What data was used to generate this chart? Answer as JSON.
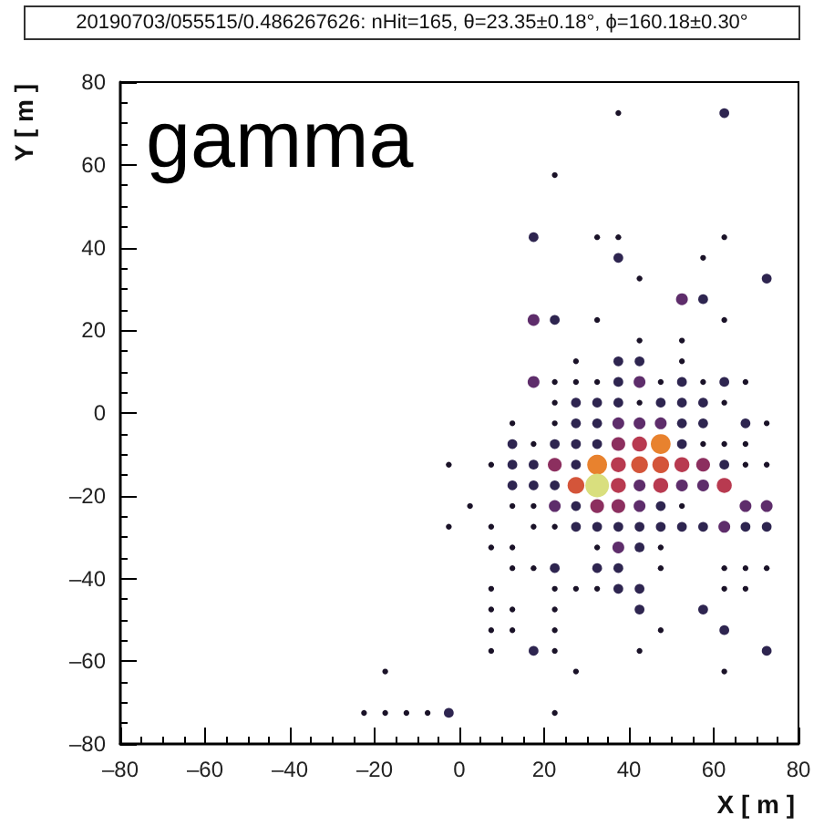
{
  "chart_data": {
    "type": "bubble",
    "title": "20190703/055515/0.486267626: nHit=165, θ=23.35±0.18°, ϕ=160.18±0.30°",
    "xlabel": "X [ m ]",
    "ylabel": "Y [ m ]",
    "annotations": [
      "gamma"
    ],
    "xlim": [
      -80,
      80
    ],
    "xticks": [
      {
        "value": -80,
        "label": "–80"
      },
      {
        "value": -60,
        "label": "–60"
      },
      {
        "value": -40,
        "label": "–40"
      },
      {
        "value": -20,
        "label": "–20"
      },
      0,
      20,
      40,
      60,
      80
    ],
    "ylim": [
      -80,
      80
    ],
    "yticks": [
      {
        "value": -80,
        "label": "–80"
      },
      {
        "value": -60,
        "label": "–60"
      },
      {
        "value": -40,
        "label": "–40"
      },
      {
        "value": -20,
        "label": "–20"
      },
      0,
      20,
      40,
      60,
      80
    ],
    "marker": "circle",
    "x": [
      37.5,
      62.5,
      22.5,
      17.5,
      32.5,
      37.5,
      62.5,
      37.5,
      57.5,
      42.5,
      72.5,
      52.5,
      57.5,
      17.5,
      22.5,
      32.5,
      62.5,
      42.5,
      52.5,
      27.5,
      37.5,
      42.5,
      52.5,
      17.5,
      22.5,
      27.5,
      32.5,
      37.5,
      42.5,
      47.5,
      52.5,
      57.5,
      62.5,
      67.5,
      22.5,
      27.5,
      32.5,
      37.5,
      42.5,
      47.5,
      52.5,
      57.5,
      62.5,
      12.5,
      22.5,
      27.5,
      32.5,
      37.5,
      42.5,
      47.5,
      52.5,
      57.5,
      67.5,
      72.5,
      12.5,
      17.5,
      22.5,
      27.5,
      32.5,
      37.5,
      42.5,
      47.5,
      52.5,
      57.5,
      62.5,
      67.5,
      -2.5,
      7.5,
      12.5,
      17.5,
      22.5,
      27.5,
      32.5,
      37.5,
      42.5,
      47.5,
      52.5,
      57.5,
      62.5,
      67.5,
      72.5,
      12.5,
      17.5,
      22.5,
      27.5,
      32.5,
      37.5,
      42.5,
      47.5,
      52.5,
      57.5,
      62.5,
      2.5,
      12.5,
      17.5,
      22.5,
      27.5,
      32.5,
      37.5,
      42.5,
      47.5,
      52.5,
      67.5,
      72.5,
      -2.5,
      7.5,
      17.5,
      22.5,
      27.5,
      32.5,
      37.5,
      42.5,
      47.5,
      52.5,
      57.5,
      62.5,
      67.5,
      72.5,
      7.5,
      12.5,
      32.5,
      37.5,
      42.5,
      47.5,
      12.5,
      17.5,
      22.5,
      32.5,
      37.5,
      47.5,
      62.5,
      67.5,
      72.5,
      7.5,
      22.5,
      27.5,
      32.5,
      37.5,
      42.5,
      62.5,
      67.5,
      7.5,
      12.5,
      22.5,
      42.5,
      57.5,
      7.5,
      12.5,
      22.5,
      47.5,
      62.5,
      7.5,
      17.5,
      22.5,
      42.5,
      72.5,
      -17.5,
      27.5,
      62.5,
      -22.5,
      -17.5,
      -12.5,
      -7.5,
      -2.5,
      22.5
    ],
    "values": [
      72.5,
      72.5,
      57.5,
      42.5,
      42.5,
      42.5,
      42.5,
      37.5,
      37.5,
      32.5,
      32.5,
      27.5,
      27.5,
      22.5,
      22.5,
      22.5,
      22.5,
      17.5,
      17.5,
      12.5,
      12.5,
      12.5,
      12.5,
      7.5,
      7.5,
      7.5,
      7.5,
      7.5,
      7.5,
      7.5,
      7.5,
      7.5,
      7.5,
      7.5,
      2.5,
      2.5,
      2.5,
      2.5,
      2.5,
      2.5,
      2.5,
      2.5,
      2.5,
      -2.5,
      -2.5,
      -2.5,
      -2.5,
      -2.5,
      -2.5,
      -2.5,
      -2.5,
      -2.5,
      -2.5,
      -2.5,
      -7.5,
      -7.5,
      -7.5,
      -7.5,
      -7.5,
      -7.5,
      -7.5,
      -7.5,
      -7.5,
      -7.5,
      -7.5,
      -7.5,
      -12.5,
      -12.5,
      -12.5,
      -12.5,
      -12.5,
      -12.5,
      -12.5,
      -12.5,
      -12.5,
      -12.5,
      -12.5,
      -12.5,
      -12.5,
      -12.5,
      -12.5,
      -17.5,
      -17.5,
      -17.5,
      -17.5,
      -17.5,
      -17.5,
      -17.5,
      -17.5,
      -17.5,
      -17.5,
      -17.5,
      -22.5,
      -22.5,
      -22.5,
      -22.5,
      -22.5,
      -22.5,
      -22.5,
      -22.5,
      -22.5,
      -22.5,
      -22.5,
      -22.5,
      -27.5,
      -27.5,
      -27.5,
      -27.5,
      -27.5,
      -27.5,
      -27.5,
      -27.5,
      -27.5,
      -27.5,
      -27.5,
      -27.5,
      -27.5,
      -27.5,
      -32.5,
      -32.5,
      -32.5,
      -32.5,
      -32.5,
      -32.5,
      -37.5,
      -37.5,
      -37.5,
      -37.5,
      -37.5,
      -37.5,
      -37.5,
      -37.5,
      -37.5,
      -42.5,
      -42.5,
      -42.5,
      -42.5,
      -42.5,
      -42.5,
      -42.5,
      -42.5,
      -47.5,
      -47.5,
      -47.5,
      -47.5,
      -47.5,
      -52.5,
      -52.5,
      -52.5,
      -52.5,
      -52.5,
      -57.5,
      -57.5,
      -57.5,
      -57.5,
      -57.5,
      -62.5,
      -62.5,
      -62.5,
      -72.5,
      -72.5,
      -72.5,
      -72.5,
      -72.5,
      -72.5
    ],
    "sizes": [
      0.06,
      0.17,
      0.06,
      0.17,
      0.06,
      0.06,
      0.06,
      0.17,
      0.06,
      0.06,
      0.17,
      0.25,
      0.17,
      0.25,
      0.17,
      0.06,
      0.06,
      0.06,
      0.06,
      0.06,
      0.17,
      0.17,
      0.06,
      0.25,
      0.06,
      0.06,
      0.06,
      0.17,
      0.25,
      0.06,
      0.17,
      0.06,
      0.17,
      0.06,
      0.06,
      0.17,
      0.17,
      0.17,
      0.06,
      0.17,
      0.17,
      0.17,
      0.06,
      0.06,
      0.06,
      0.17,
      0.17,
      0.25,
      0.25,
      0.25,
      0.17,
      0.17,
      0.17,
      0.06,
      0.17,
      0.06,
      0.17,
      0.17,
      0.17,
      0.34,
      0.4,
      0.7,
      0.17,
      0.06,
      0.06,
      0.06,
      0.06,
      0.06,
      0.17,
      0.17,
      0.34,
      0.17,
      0.7,
      0.4,
      0.5,
      0.5,
      0.4,
      0.34,
      0.17,
      0.06,
      0.06,
      0.17,
      0.17,
      0.17,
      0.5,
      1,
      0.4,
      0.25,
      0.4,
      0.25,
      0.25,
      0.4,
      0.06,
      0.06,
      0.06,
      0.25,
      0.17,
      0.34,
      0.34,
      0.25,
      0.17,
      0.06,
      0.25,
      0.25,
      0.06,
      0.06,
      0.06,
      0.06,
      0.17,
      0.17,
      0.17,
      0.17,
      0.17,
      0.17,
      0.17,
      0.25,
      0.17,
      0.17,
      0.06,
      0.06,
      0.06,
      0.25,
      0.17,
      0.06,
      0.06,
      0.06,
      0.17,
      0.17,
      0.17,
      0.06,
      0.06,
      0.06,
      0.06,
      0.06,
      0.06,
      0.06,
      0.06,
      0.17,
      0.17,
      0.06,
      0.06,
      0.06,
      0.06,
      0.06,
      0.17,
      0.17,
      0.06,
      0.06,
      0.06,
      0.06,
      0.17,
      0.06,
      0.17,
      0.06,
      0.06,
      0.17,
      0.06,
      0.06,
      0.06,
      0.06,
      0.06,
      0.06,
      0.06,
      0.17,
      0.06
    ],
    "colors": [
      "#1a1228",
      "#2e2550",
      "#1a1228",
      "#2e2550",
      "#1a1228",
      "#1a1228",
      "#1a1228",
      "#2e2550",
      "#1a1228",
      "#1a1228",
      "#2e2550",
      "#5e2d6b",
      "#2e2550",
      "#5e2d6b",
      "#2e2550",
      "#1a1228",
      "#1a1228",
      "#1a1228",
      "#1a1228",
      "#1a1228",
      "#2e2550",
      "#2e2550",
      "#1a1228",
      "#5e2d6b",
      "#1a1228",
      "#1a1228",
      "#1a1228",
      "#2e2550",
      "#5e2d6b",
      "#1a1228",
      "#2e2550",
      "#1a1228",
      "#2e2550",
      "#1a1228",
      "#1a1228",
      "#2e2550",
      "#2e2550",
      "#2e2550",
      "#1a1228",
      "#2e2550",
      "#2e2550",
      "#2e2550",
      "#1a1228",
      "#1a1228",
      "#1a1228",
      "#2e2550",
      "#2e2550",
      "#5e2d6b",
      "#5e2d6b",
      "#5e2d6b",
      "#2e2550",
      "#2e2550",
      "#2e2550",
      "#1a1228",
      "#2e2550",
      "#1a1228",
      "#2e2550",
      "#2e2550",
      "#2e2550",
      "#8c2f5f",
      "#b83a50",
      "#e8822e",
      "#2e2550",
      "#1a1228",
      "#1a1228",
      "#1a1228",
      "#1a1228",
      "#1a1228",
      "#2e2550",
      "#2e2550",
      "#8c2f5f",
      "#2e2550",
      "#e8822e",
      "#b83a50",
      "#d4553a",
      "#d4553a",
      "#b83a50",
      "#8c2f5f",
      "#2e2550",
      "#1a1228",
      "#1a1228",
      "#2e2550",
      "#2e2550",
      "#2e2550",
      "#d4553a",
      "#d9df7e",
      "#b83a50",
      "#5e2d6b",
      "#b83a50",
      "#5e2d6b",
      "#5e2d6b",
      "#b83a50",
      "#1a1228",
      "#1a1228",
      "#1a1228",
      "#5e2d6b",
      "#2e2550",
      "#8c2f5f",
      "#8c2f5f",
      "#5e2d6b",
      "#2e2550",
      "#1a1228",
      "#5e2d6b",
      "#5e2d6b",
      "#1a1228",
      "#1a1228",
      "#1a1228",
      "#1a1228",
      "#2e2550",
      "#2e2550",
      "#2e2550",
      "#2e2550",
      "#2e2550",
      "#2e2550",
      "#2e2550",
      "#5e2d6b",
      "#2e2550",
      "#2e2550",
      "#1a1228",
      "#1a1228",
      "#1a1228",
      "#5e2d6b",
      "#2e2550",
      "#1a1228",
      "#1a1228",
      "#1a1228",
      "#2e2550",
      "#2e2550",
      "#2e2550",
      "#1a1228",
      "#1a1228",
      "#1a1228",
      "#1a1228",
      "#1a1228",
      "#1a1228",
      "#1a1228",
      "#1a1228",
      "#2e2550",
      "#2e2550",
      "#1a1228",
      "#1a1228",
      "#1a1228",
      "#1a1228",
      "#1a1228",
      "#2e2550",
      "#2e2550",
      "#1a1228",
      "#1a1228",
      "#1a1228",
      "#1a1228",
      "#2e2550",
      "#1a1228",
      "#2e2550",
      "#1a1228",
      "#1a1228",
      "#2e2550",
      "#1a1228",
      "#1a1228",
      "#1a1228",
      "#1a1228",
      "#1a1228",
      "#1a1228",
      "#1a1228",
      "#2e2550",
      "#1a1228"
    ]
  }
}
